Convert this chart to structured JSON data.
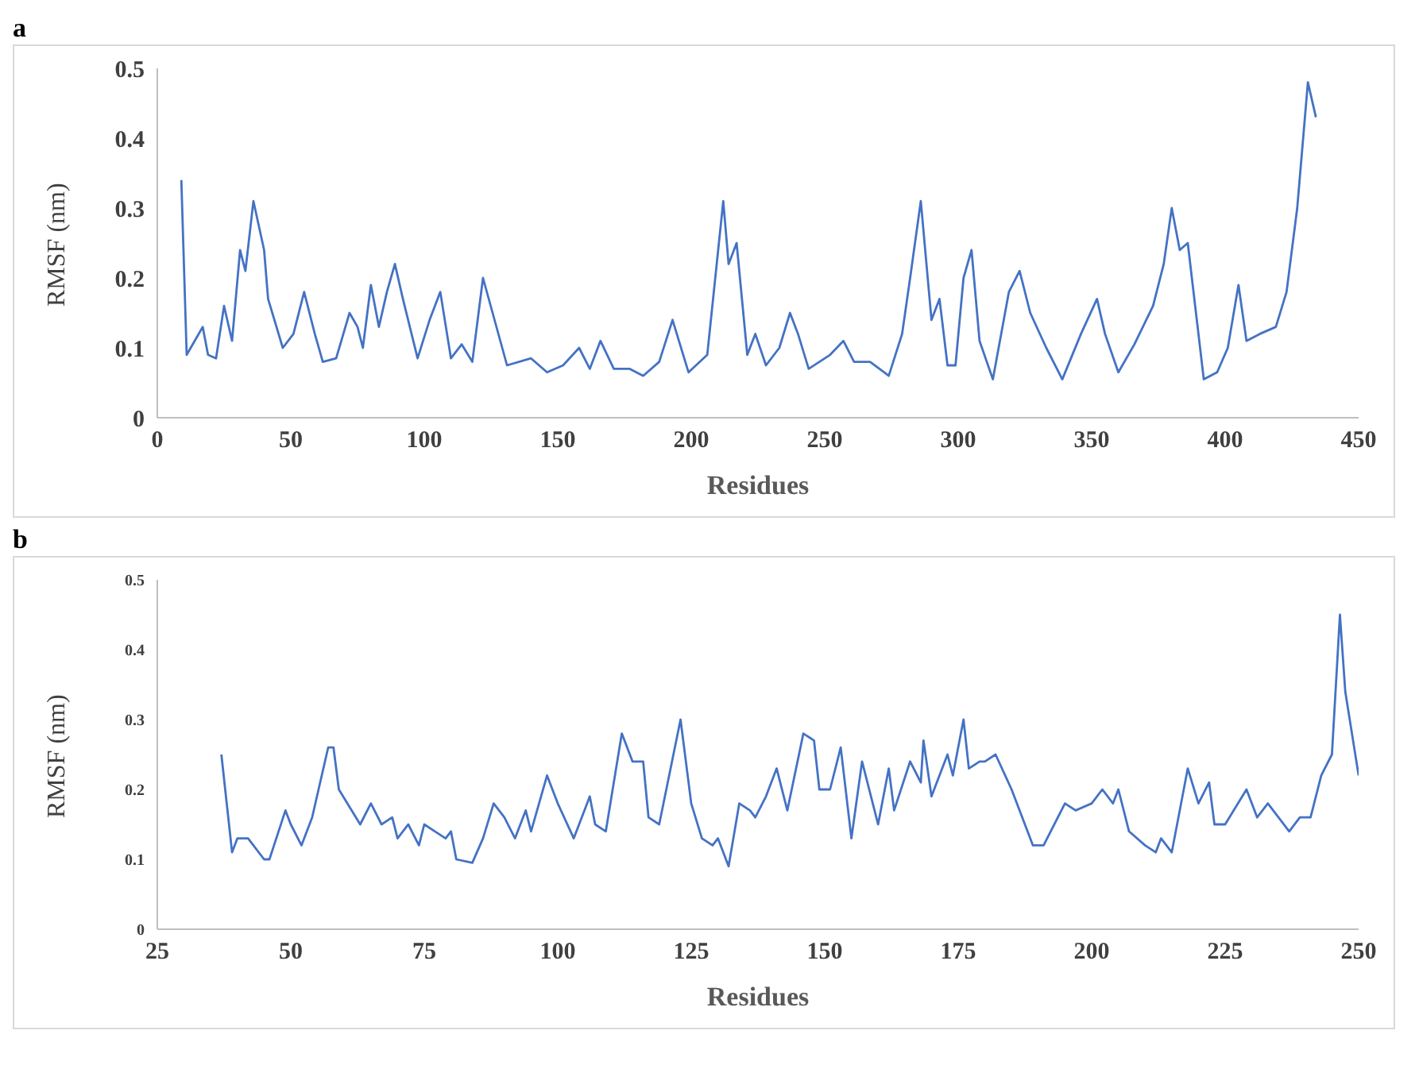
{
  "chart_data": [
    {
      "type": "line",
      "title": "a",
      "xlabel": "Residues",
      "ylabel": "RMSF (nm)",
      "xlim": [
        0,
        450
      ],
      "xticks": [
        0,
        50,
        100,
        150,
        200,
        250,
        300,
        350,
        400,
        450
      ],
      "ylim": [
        0,
        0.5
      ],
      "yticks": [
        0,
        0.1,
        0.2,
        0.3,
        0.4,
        0.5
      ],
      "grid": false,
      "marker": "none",
      "series": [
        {
          "color": "#4472c4",
          "x": [
            9,
            11,
            17,
            19,
            22,
            25,
            28,
            31,
            33,
            36,
            40,
            41.5,
            47,
            51,
            55,
            59,
            62,
            67,
            72,
            75,
            77,
            80,
            83,
            86,
            89,
            92,
            97.5,
            102,
            106,
            110,
            114,
            118,
            122,
            131,
            140,
            146,
            152,
            158,
            162,
            166,
            171,
            177,
            182,
            188,
            193,
            199,
            206,
            212,
            214,
            217,
            221,
            224,
            228,
            233,
            237,
            240,
            244,
            252,
            257,
            261,
            267,
            274,
            279,
            282,
            286,
            290,
            293,
            296,
            299,
            302,
            305,
            308,
            313,
            319,
            323,
            327,
            333,
            339,
            346,
            352,
            355,
            360,
            366,
            373,
            377,
            380,
            383,
            386,
            392,
            397,
            401,
            405,
            408,
            413,
            419,
            423,
            427,
            431,
            434
          ],
          "values": [
            0.34,
            0.09,
            0.13,
            0.09,
            0.085,
            0.16,
            0.11,
            0.24,
            0.21,
            0.31,
            0.24,
            0.17,
            0.1,
            0.12,
            0.18,
            0.12,
            0.08,
            0.085,
            0.15,
            0.13,
            0.1,
            0.19,
            0.13,
            0.18,
            0.22,
            0.17,
            0.085,
            0.14,
            0.18,
            0.085,
            0.105,
            0.08,
            0.2,
            0.075,
            0.085,
            0.065,
            0.075,
            0.1,
            0.07,
            0.11,
            0.07,
            0.07,
            0.06,
            0.08,
            0.14,
            0.065,
            0.09,
            0.31,
            0.22,
            0.25,
            0.09,
            0.12,
            0.075,
            0.1,
            0.15,
            0.12,
            0.07,
            0.09,
            0.11,
            0.08,
            0.08,
            0.06,
            0.12,
            0.2,
            0.31,
            0.14,
            0.17,
            0.075,
            0.075,
            0.2,
            0.24,
            0.11,
            0.055,
            0.18,
            0.21,
            0.15,
            0.1,
            0.055,
            0.12,
            0.17,
            0.12,
            0.065,
            0.105,
            0.16,
            0.22,
            0.3,
            0.24,
            0.25,
            0.055,
            0.065,
            0.1,
            0.19,
            0.11,
            0.12,
            0.13,
            0.18,
            0.3,
            0.48,
            0.43
          ]
        }
      ]
    },
    {
      "type": "line",
      "title": "b",
      "xlabel": "Residues",
      "ylabel": "RMSF (nm)",
      "xlim": [
        25,
        250
      ],
      "xticks": [
        25,
        50,
        75,
        100,
        125,
        150,
        175,
        200,
        225,
        250
      ],
      "ylim": [
        0,
        0.5
      ],
      "yticks": [
        0,
        0.1,
        0.2,
        0.3,
        0.4,
        0.5
      ],
      "grid": false,
      "marker": "none",
      "series": [
        {
          "color": "#4472c4",
          "x": [
            37,
            39,
            40,
            42,
            45,
            46,
            49,
            50,
            52,
            54,
            57,
            58,
            59,
            63,
            65,
            67,
            69,
            70,
            72,
            74,
            75,
            77,
            79,
            80,
            81,
            84,
            86,
            88,
            90,
            92,
            94,
            95,
            98,
            100,
            103,
            106,
            107,
            109,
            112,
            114,
            116,
            117,
            119,
            123,
            125,
            127,
            129,
            130,
            132,
            134,
            136,
            137,
            139,
            141,
            143,
            146,
            148,
            149,
            151,
            153,
            155,
            157,
            160,
            162,
            163,
            166,
            168,
            168.5,
            170,
            173,
            174,
            176,
            177,
            179,
            180,
            182,
            185,
            189,
            191,
            195,
            197,
            200,
            202,
            204,
            205,
            207,
            210,
            212,
            213,
            215,
            218,
            220,
            222,
            223,
            225,
            229,
            231,
            233,
            237,
            239,
            241,
            243,
            245,
            246.5,
            247.5,
            250
          ],
          "values": [
            0.25,
            0.11,
            0.13,
            0.13,
            0.1,
            0.1,
            0.17,
            0.15,
            0.12,
            0.16,
            0.26,
            0.26,
            0.2,
            0.15,
            0.18,
            0.15,
            0.16,
            0.13,
            0.15,
            0.12,
            0.15,
            0.14,
            0.13,
            0.14,
            0.1,
            0.095,
            0.13,
            0.18,
            0.16,
            0.13,
            0.17,
            0.14,
            0.22,
            0.18,
            0.13,
            0.19,
            0.15,
            0.14,
            0.28,
            0.24,
            0.24,
            0.16,
            0.15,
            0.3,
            0.18,
            0.13,
            0.12,
            0.13,
            0.09,
            0.18,
            0.17,
            0.16,
            0.19,
            0.23,
            0.17,
            0.28,
            0.27,
            0.2,
            0.2,
            0.26,
            0.13,
            0.24,
            0.15,
            0.23,
            0.17,
            0.24,
            0.21,
            0.27,
            0.19,
            0.25,
            0.22,
            0.3,
            0.23,
            0.24,
            0.24,
            0.25,
            0.2,
            0.12,
            0.12,
            0.18,
            0.17,
            0.18,
            0.2,
            0.18,
            0.2,
            0.14,
            0.12,
            0.11,
            0.13,
            0.11,
            0.23,
            0.18,
            0.21,
            0.15,
            0.15,
            0.2,
            0.16,
            0.18,
            0.14,
            0.16,
            0.16,
            0.22,
            0.25,
            0.45,
            0.34,
            0.22
          ]
        }
      ]
    }
  ]
}
